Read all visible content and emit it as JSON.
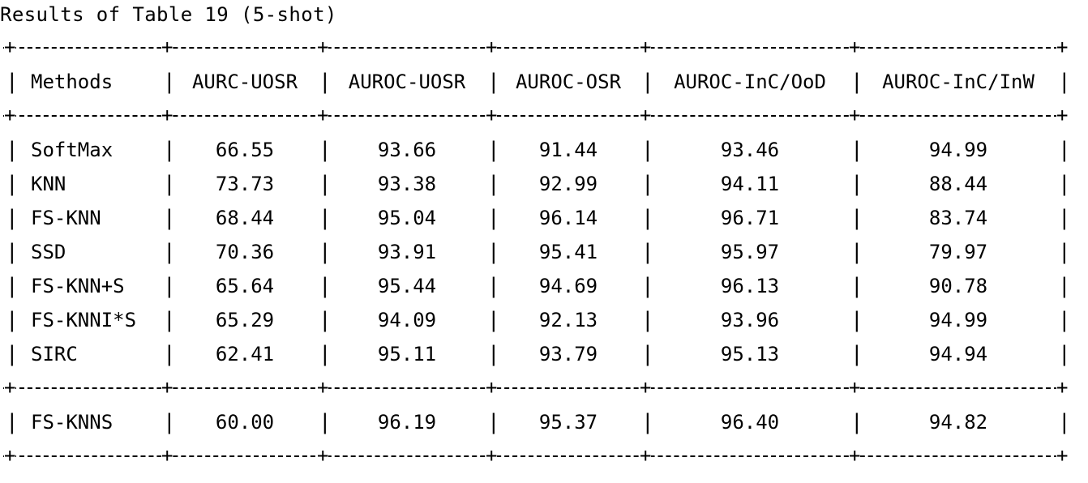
{
  "title": "Results of Table 19 (5-shot)",
  "table": {
    "headers": [
      "Methods",
      "AURC-UOSR",
      "AUROC-UOSR",
      "AUROC-OSR",
      "AUROC-InC/OoD",
      "AUROC-InC/InW"
    ],
    "rows": [
      [
        "SoftMax",
        "66.55",
        "93.66",
        "91.44",
        "93.46",
        "94.99"
      ],
      [
        "KNN",
        "73.73",
        "93.38",
        "92.99",
        "94.11",
        "88.44"
      ],
      [
        "FS-KNN",
        "68.44",
        "95.04",
        "96.14",
        "96.71",
        "83.74"
      ],
      [
        "SSD",
        "70.36",
        "93.91",
        "95.41",
        "95.97",
        "79.97"
      ],
      [
        "FS-KNN+S",
        "65.64",
        "95.44",
        "94.69",
        "96.13",
        "90.78"
      ],
      [
        "FS-KNNI*S",
        "65.29",
        "94.09",
        "92.13",
        "93.96",
        "94.99"
      ],
      [
        "SIRC",
        "62.41",
        "95.11",
        "93.79",
        "95.13",
        "94.94"
      ]
    ],
    "footer_rows": [
      [
        "FS-KNNS",
        "60.00",
        "96.19",
        "95.37",
        "96.40",
        "94.82"
      ]
    ]
  }
}
